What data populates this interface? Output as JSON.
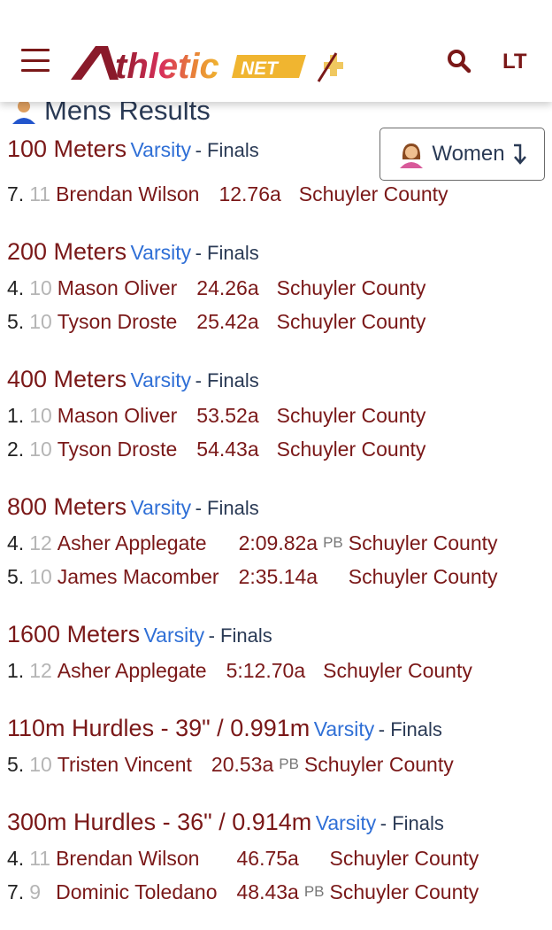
{
  "header": {
    "logo_text": "AthleticNET+",
    "account": "LT"
  },
  "section_title": "Mens Results",
  "toggle_button": "Women",
  "events": [
    {
      "name": "100 Meters",
      "division": "Varsity",
      "round": "- Finals",
      "results": [
        {
          "place": "7.",
          "grade": "11",
          "athlete": "Brendan Wilson",
          "time": "12.76a",
          "pb": "",
          "team": "Schuyler County"
        }
      ]
    },
    {
      "name": "200 Meters",
      "division": "Varsity",
      "round": "- Finals",
      "results": [
        {
          "place": "4.",
          "grade": "10",
          "athlete": "Mason Oliver",
          "time": "24.26a",
          "pb": "",
          "team": "Schuyler County"
        },
        {
          "place": "5.",
          "grade": "10",
          "athlete": "Tyson Droste",
          "time": "25.42a",
          "pb": "",
          "team": "Schuyler County"
        }
      ]
    },
    {
      "name": "400 Meters",
      "division": "Varsity",
      "round": "- Finals",
      "results": [
        {
          "place": "1.",
          "grade": "10",
          "athlete": "Mason Oliver",
          "time": "53.52a",
          "pb": "",
          "team": "Schuyler County"
        },
        {
          "place": "2.",
          "grade": "10",
          "athlete": "Tyson Droste",
          "time": "54.43a",
          "pb": "",
          "team": "Schuyler County"
        }
      ]
    },
    {
      "name": "800 Meters",
      "division": "Varsity",
      "round": "- Finals",
      "results": [
        {
          "place": "4.",
          "grade": "12",
          "athlete": "Asher Applegate",
          "time": "2:09.82a",
          "pb": "PB",
          "team": "Schuyler County"
        },
        {
          "place": "5.",
          "grade": "10",
          "athlete": "James Macomber",
          "time": "2:35.14a",
          "pb": "",
          "team": "Schuyler County"
        }
      ]
    },
    {
      "name": "1600 Meters",
      "division": "Varsity",
      "round": "- Finals",
      "results": [
        {
          "place": "1.",
          "grade": "12",
          "athlete": "Asher Applegate",
          "time": "5:12.70a",
          "pb": "",
          "team": "Schuyler County"
        }
      ]
    },
    {
      "name": "110m Hurdles - 39\" / 0.991m",
      "division": "Varsity",
      "round": "- Finals",
      "results": [
        {
          "place": "5.",
          "grade": "10",
          "athlete": "Tristen Vincent",
          "time": "20.53a",
          "pb": "PB",
          "team": "Schuyler County"
        }
      ]
    },
    {
      "name": "300m Hurdles - 36\" / 0.914m",
      "division": "Varsity",
      "round": "- Finals",
      "results": [
        {
          "place": "4.",
          "grade": "11",
          "athlete": "Brendan Wilson",
          "time": "46.75a",
          "pb": "",
          "team": "Schuyler County"
        },
        {
          "place": "7.",
          "grade": "9",
          "athlete": "Dominic Toledano",
          "time": "48.43a",
          "pb": "PB",
          "team": "Schuyler County"
        }
      ]
    }
  ],
  "colors": {
    "brand": "#7a1818",
    "link": "#2f6fd6",
    "logo_gold": "#f0b530",
    "logo_pink": "#d8305a"
  }
}
